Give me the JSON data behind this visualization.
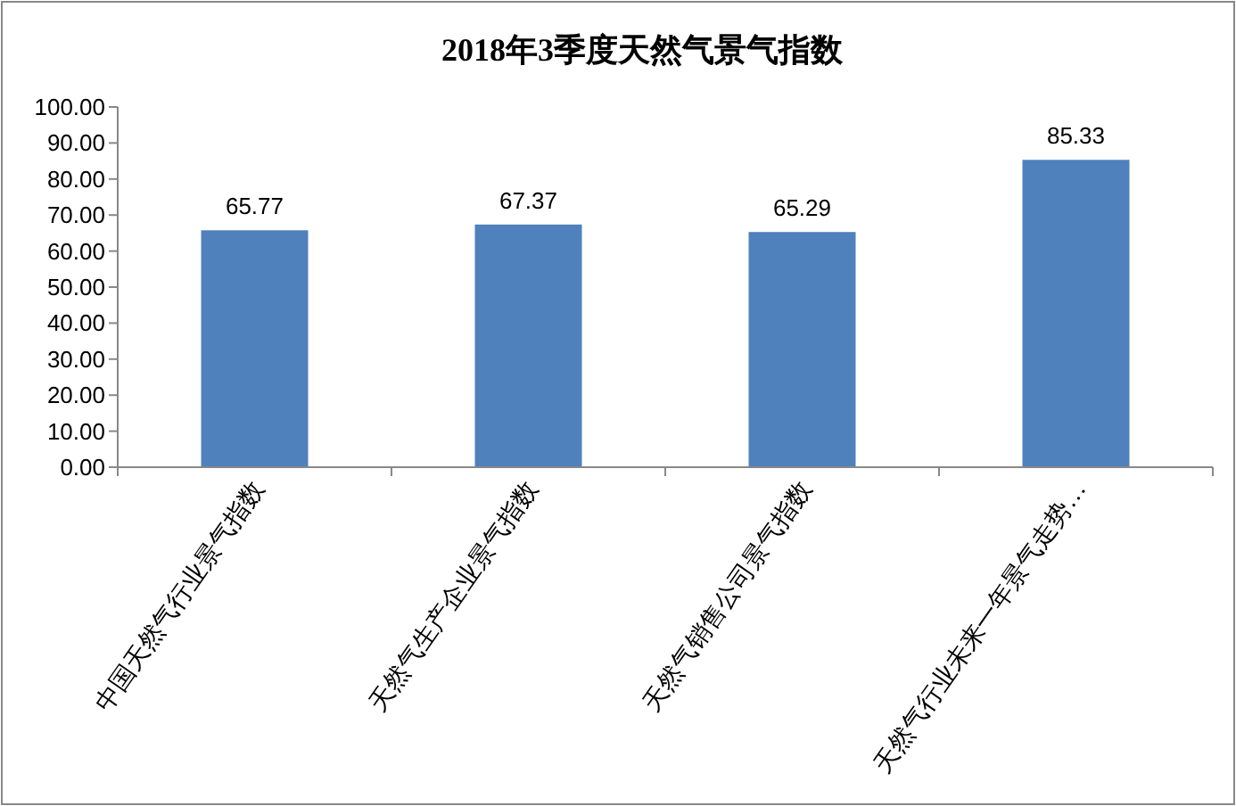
{
  "chart_data": {
    "type": "bar",
    "title": "2018年3季度天然气景气指数",
    "categories": [
      "中国天然气行业景气指数",
      "天然气生产企业景气指数",
      "天然气销售公司景气指数",
      "天然气行业未来一年景气走势…"
    ],
    "values": [
      65.77,
      67.37,
      65.29,
      85.33
    ],
    "color": "#4f81bd",
    "data_labels": true,
    "grid": false,
    "ylim": [
      0,
      100
    ],
    "yticks": [
      {
        "value": 0,
        "label": "0.00"
      },
      {
        "value": 10,
        "label": "10.00"
      },
      {
        "value": 20,
        "label": "20.00"
      },
      {
        "value": 30,
        "label": "30.00"
      },
      {
        "value": 40,
        "label": "40.00"
      },
      {
        "value": 50,
        "label": "50.00"
      },
      {
        "value": 60,
        "label": "60.00"
      },
      {
        "value": 70,
        "label": "70.00"
      },
      {
        "value": 80,
        "label": "80.00"
      },
      {
        "value": 90,
        "label": "90.00"
      },
      {
        "value": 100,
        "label": "100.00"
      }
    ]
  }
}
